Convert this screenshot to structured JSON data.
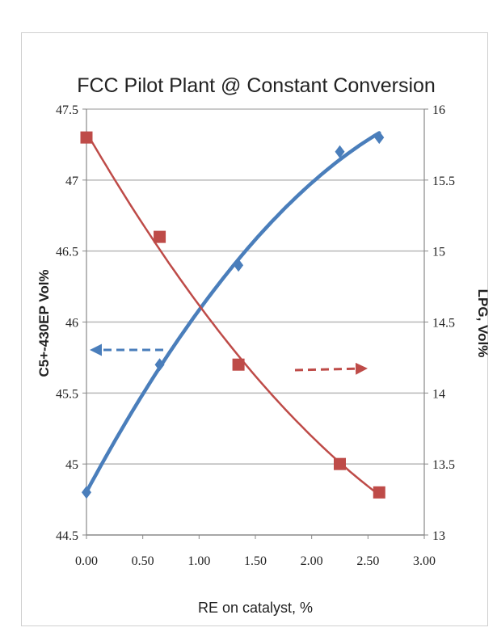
{
  "chart_data": {
    "type": "scatter",
    "title": "FCC Pilot Plant @ Constant Conversion",
    "xlabel": "RE on catalyst, %",
    "ylabel_left": "C5+-430EP Vol%",
    "ylabel_right": "LPG, Vol%",
    "xlim": [
      0,
      3
    ],
    "ylim_left": [
      44.5,
      47.5
    ],
    "ylim_right": [
      13,
      16
    ],
    "x_ticks": [
      "0.00",
      "0.50",
      "1.00",
      "1.50",
      "2.00",
      "2.50",
      "3.00"
    ],
    "y_left_ticks": [
      "44.5",
      "45",
      "45.5",
      "46",
      "46.5",
      "47",
      "47.5"
    ],
    "y_right_ticks": [
      "13",
      "13.5",
      "14",
      "14.5",
      "15",
      "15.5",
      "16"
    ],
    "grid": true,
    "series": [
      {
        "axis": "left",
        "marker": "diamond",
        "color": "#4a7ebb",
        "x": [
          0.0,
          0.65,
          1.35,
          2.25,
          2.6
        ],
        "y": [
          44.8,
          45.7,
          46.4,
          47.2,
          47.3
        ]
      },
      {
        "axis": "right",
        "marker": "square",
        "color": "#be4b48",
        "x": [
          0.0,
          0.65,
          1.35,
          2.25,
          2.6
        ],
        "y": [
          15.8,
          15.1,
          14.2,
          13.5,
          13.3
        ]
      }
    ],
    "annotations": [
      {
        "type": "dashed-arrow",
        "direction": "left",
        "color": "#4a7ebb",
        "meaning": "blue series uses left axis"
      },
      {
        "type": "dashed-arrow",
        "direction": "right",
        "color": "#be4b48",
        "meaning": "red series uses right axis"
      }
    ]
  }
}
